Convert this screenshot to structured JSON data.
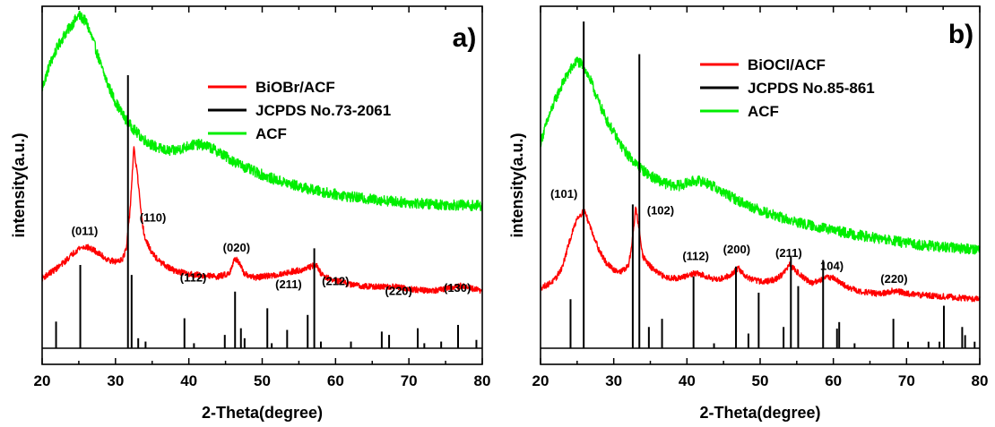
{
  "chart_data": [
    {
      "type": "line",
      "panel_label": "a)",
      "xlabel": "2-Theta(degree)",
      "ylabel": "intensity(a.u.)",
      "xlim": [
        20,
        80
      ],
      "ylim": [
        0,
        100
      ],
      "x_ticks": [
        "20",
        "30",
        "40",
        "50",
        "60",
        "70",
        "80"
      ],
      "y_ticks_shown": false,
      "grid": false,
      "legend_position": "top-right",
      "legend": [
        {
          "label": "BiOBr/ACF",
          "color": "#ff0000"
        },
        {
          "label": "JCPDS No.73-2061",
          "color": "#000000"
        },
        {
          "label": "ACF",
          "color": "#00ee00"
        }
      ],
      "series": [
        {
          "name": "ACF",
          "color": "#00ee00",
          "noise": 1.6,
          "points": [
            [
              20,
              78
            ],
            [
              21,
              85
            ],
            [
              22,
              90
            ],
            [
              23,
              94
            ],
            [
              24,
              97
            ],
            [
              25,
              100
            ],
            [
              26,
              98
            ],
            [
              27,
              92
            ],
            [
              28,
              85
            ],
            [
              29,
              79
            ],
            [
              30,
              74
            ],
            [
              31,
              70
            ],
            [
              32,
              67
            ],
            [
              33,
              64.5
            ],
            [
              34,
              62.5
            ],
            [
              35,
              61
            ],
            [
              36,
              60
            ],
            [
              37,
              59.3
            ],
            [
              38,
              59.3
            ],
            [
              39,
              60
            ],
            [
              40,
              60.8
            ],
            [
              41,
              61.2
            ],
            [
              42,
              61
            ],
            [
              43,
              60.2
            ],
            [
              44,
              59
            ],
            [
              45,
              57.6
            ],
            [
              46,
              56.3
            ],
            [
              47,
              55.1
            ],
            [
              48,
              54
            ],
            [
              49,
              53
            ],
            [
              50,
              52.1
            ],
            [
              51,
              51.2
            ],
            [
              52,
              50.5
            ],
            [
              53,
              49.8
            ],
            [
              54,
              49.2
            ],
            [
              55,
              48.6
            ],
            [
              56,
              48
            ],
            [
              57,
              47.5
            ],
            [
              58,
              47
            ],
            [
              60,
              46.2
            ],
            [
              62,
              45.5
            ],
            [
              64,
              44.9
            ],
            [
              66,
              44.5
            ],
            [
              68,
              44.1
            ],
            [
              70,
              43.7
            ],
            [
              72,
              43.4
            ],
            [
              75,
              43.1
            ],
            [
              80,
              42.8
            ]
          ]
        },
        {
          "name": "BiOBr/ACF",
          "color": "#ff0000",
          "noise": 0.9,
          "points": [
            [
              20,
              21
            ],
            [
              21,
              22.5
            ],
            [
              22,
              24
            ],
            [
              23,
              25.8
            ],
            [
              24,
              28
            ],
            [
              25,
              30
            ],
            [
              26,
              30.5
            ],
            [
              27,
              29.5
            ],
            [
              28,
              28
            ],
            [
              29,
              26.5
            ],
            [
              30,
              26
            ],
            [
              31,
              27
            ],
            [
              31.5,
              30
            ],
            [
              32,
              42
            ],
            [
              32.5,
              60
            ],
            [
              33,
              52
            ],
            [
              33.5,
              40
            ],
            [
              34,
              33
            ],
            [
              35,
              28.5
            ],
            [
              36,
              26
            ],
            [
              37,
              24.5
            ],
            [
              38,
              23.3
            ],
            [
              40,
              22.3
            ],
            [
              42,
              21.8
            ],
            [
              44,
              21.5
            ],
            [
              45.5,
              22.5
            ],
            [
              46.3,
              27
            ],
            [
              46.8,
              26
            ],
            [
              47.5,
              22.3
            ],
            [
              49,
              21.2
            ],
            [
              50,
              21.5
            ],
            [
              52,
              22
            ],
            [
              54,
              23
            ],
            [
              56,
              23.8
            ],
            [
              57,
              25
            ],
            [
              57.5,
              24.5
            ],
            [
              58,
              22.5
            ],
            [
              59,
              21
            ],
            [
              60,
              20.3
            ],
            [
              62,
              19.2
            ],
            [
              64,
              18.6
            ],
            [
              66,
              18.4
            ],
            [
              68,
              18.5
            ],
            [
              70,
              17.8
            ],
            [
              72,
              17.4
            ],
            [
              74,
              17.4
            ],
            [
              76,
              18.3
            ],
            [
              77,
              18.7
            ],
            [
              78,
              18.2
            ],
            [
              80,
              17.2
            ]
          ]
        }
      ],
      "reference_sticks": {
        "name": "JCPDS No.73-2061",
        "color": "#000000",
        "baseline": 0,
        "peaks": [
          [
            21.9,
            8
          ],
          [
            25.2,
            25
          ],
          [
            31.7,
            82
          ],
          [
            32.2,
            22
          ],
          [
            33.1,
            3
          ],
          [
            34.1,
            2
          ],
          [
            39.4,
            9
          ],
          [
            40.7,
            1.5
          ],
          [
            44.9,
            4
          ],
          [
            46.3,
            17
          ],
          [
            47.1,
            6
          ],
          [
            47.6,
            3
          ],
          [
            50.7,
            12
          ],
          [
            51.3,
            1.5
          ],
          [
            53.4,
            5.5
          ],
          [
            56.2,
            10
          ],
          [
            57.1,
            30
          ],
          [
            58.0,
            2
          ],
          [
            62.1,
            2
          ],
          [
            66.3,
            5
          ],
          [
            67.3,
            4
          ],
          [
            71.2,
            6
          ],
          [
            72.1,
            1.5
          ],
          [
            74.4,
            2
          ],
          [
            76.7,
            7
          ],
          [
            79.2,
            2.5
          ]
        ]
      },
      "peak_labels": [
        {
          "text": "(011)",
          "x": 25.8,
          "y": 34
        },
        {
          "text": "(110)",
          "x": 35.1,
          "y": 38
        },
        {
          "text": "(112)",
          "x": 40.6,
          "y": 20
        },
        {
          "text": "(020)",
          "x": 46.5,
          "y": 29
        },
        {
          "text": "(211)",
          "x": 53.6,
          "y": 18
        },
        {
          "text": "(212)",
          "x": 60.0,
          "y": 19
        },
        {
          "text": "(220)",
          "x": 68.6,
          "y": 16
        },
        {
          "text": "(130)",
          "x": 76.6,
          "y": 17
        }
      ]
    },
    {
      "type": "line",
      "panel_label": "b)",
      "xlabel": "2-Theta(degree)",
      "ylabel": "intensity(a.u.)",
      "xlim": [
        20,
        80
      ],
      "ylim": [
        0,
        100
      ],
      "x_ticks": [
        "20",
        "30",
        "40",
        "50",
        "60",
        "70",
        "80"
      ],
      "y_ticks_shown": false,
      "grid": false,
      "legend_position": "top-right",
      "legend": [
        {
          "label": "BiOCl/ACF",
          "color": "#ff0000"
        },
        {
          "label": "JCPDS No.85-861",
          "color": "#000000"
        },
        {
          "label": "ACF",
          "color": "#00ee00"
        }
      ],
      "series": [
        {
          "name": "ACF",
          "color": "#00ee00",
          "noise": 1.6,
          "points": [
            [
              20,
              63
            ],
            [
              21,
              70
            ],
            [
              22,
              76
            ],
            [
              23,
              81
            ],
            [
              24,
              85
            ],
            [
              25,
              88
            ],
            [
              26,
              86
            ],
            [
              27,
              81
            ],
            [
              28,
              75
            ],
            [
              29,
              70
            ],
            [
              30,
              66
            ],
            [
              31,
              62
            ],
            [
              32,
              59
            ],
            [
              33,
              56.5
            ],
            [
              34,
              54.5
            ],
            [
              35,
              52.8
            ],
            [
              36,
              51.5
            ],
            [
              37,
              50.5
            ],
            [
              38,
              49.8
            ],
            [
              39,
              49.8
            ],
            [
              40,
              50.5
            ],
            [
              41,
              51.2
            ],
            [
              42,
              51.2
            ],
            [
              43,
              50.3
            ],
            [
              44,
              49
            ],
            [
              45,
              47.6
            ],
            [
              46,
              46.4
            ],
            [
              47,
              45.2
            ],
            [
              48,
              44.1
            ],
            [
              50,
              42.2
            ],
            [
              52,
              40.6
            ],
            [
              54,
              39.2
            ],
            [
              56,
              38
            ],
            [
              58,
              37
            ],
            [
              60,
              36.1
            ],
            [
              62,
              35.2
            ],
            [
              64,
              34.4
            ],
            [
              66,
              33.6
            ],
            [
              68,
              32.9
            ],
            [
              70,
              32.2
            ],
            [
              72,
              31.6
            ],
            [
              75,
              30.9
            ],
            [
              80,
              30.3
            ]
          ]
        },
        {
          "name": "BiOCl/ACF",
          "color": "#ff0000",
          "noise": 0.9,
          "points": [
            [
              20,
              18.5
            ],
            [
              21,
              19.5
            ],
            [
              22,
              21
            ],
            [
              23,
              25
            ],
            [
              24,
              33
            ],
            [
              25,
              40
            ],
            [
              26,
              42
            ],
            [
              27,
              36
            ],
            [
              28,
              30
            ],
            [
              29,
              26
            ],
            [
              30,
              24
            ],
            [
              31,
              23.5
            ],
            [
              32,
              25
            ],
            [
              32.5,
              32
            ],
            [
              33,
              43
            ],
            [
              33.5,
              36
            ],
            [
              34,
              28
            ],
            [
              35,
              25
            ],
            [
              36,
              23
            ],
            [
              37,
              21.8
            ],
            [
              38,
              21.5
            ],
            [
              39,
              21.5
            ],
            [
              40,
              22
            ],
            [
              41,
              23
            ],
            [
              42,
              22.5
            ],
            [
              43,
              21.8
            ],
            [
              44,
              21
            ],
            [
              45,
              21.5
            ],
            [
              46,
              22.5
            ],
            [
              47,
              24.5
            ],
            [
              48,
              22
            ],
            [
              49,
              21
            ],
            [
              50,
              20.5
            ],
            [
              51,
              20.5
            ],
            [
              52,
              21
            ],
            [
              53,
              22.5
            ],
            [
              54,
              25.5
            ],
            [
              55,
              23.5
            ],
            [
              56,
              21.5
            ],
            [
              57,
              20
            ],
            [
              58,
              20.5
            ],
            [
              59,
              22
            ],
            [
              60,
              21.5
            ],
            [
              61,
              20
            ],
            [
              62,
              18.6
            ],
            [
              63,
              17.8
            ],
            [
              64,
              17.3
            ],
            [
              65,
              17
            ],
            [
              66,
              16.7
            ],
            [
              67,
              16.9
            ],
            [
              68,
              17.5
            ],
            [
              69,
              17.3
            ],
            [
              70,
              16.7
            ],
            [
              72,
              16.3
            ],
            [
              74,
              16
            ],
            [
              76,
              15.7
            ],
            [
              78,
              15.3
            ],
            [
              80,
              15.1
            ]
          ]
        }
      ],
      "reference_sticks": {
        "name": "JCPDS No.85-861",
        "color": "#000000",
        "baseline": 0,
        "peaks": [
          [
            24.1,
            15
          ],
          [
            25.9,
            100
          ],
          [
            32.6,
            44
          ],
          [
            33.5,
            90
          ],
          [
            34.8,
            6.5
          ],
          [
            36.6,
            9
          ],
          [
            40.9,
            22
          ],
          [
            43.7,
            1.5
          ],
          [
            46.7,
            25
          ],
          [
            48.4,
            4.5
          ],
          [
            49.8,
            17
          ],
          [
            53.2,
            6.5
          ],
          [
            54.2,
            28
          ],
          [
            55.2,
            19
          ],
          [
            58.6,
            27
          ],
          [
            60.5,
            6
          ],
          [
            60.8,
            8
          ],
          [
            62.9,
            1.5
          ],
          [
            68.2,
            9
          ],
          [
            70.2,
            2
          ],
          [
            73,
            2
          ],
          [
            74.5,
            2
          ],
          [
            75.1,
            13
          ],
          [
            77.6,
            6.5
          ],
          [
            78,
            4
          ],
          [
            79.3,
            2
          ]
        ]
      },
      "peak_labels": [
        {
          "text": "(101)",
          "x": 23.2,
          "y": 46
        },
        {
          "text": "(102)",
          "x": 36.4,
          "y": 41
        },
        {
          "text": "(112)",
          "x": 41.2,
          "y": 27
        },
        {
          "text": "(200)",
          "x": 46.8,
          "y": 29
        },
        {
          "text": "(211)",
          "x": 53.9,
          "y": 28
        },
        {
          "text": "104)",
          "x": 59.8,
          "y": 24
        },
        {
          "text": "(220)",
          "x": 68.3,
          "y": 20
        }
      ]
    }
  ]
}
